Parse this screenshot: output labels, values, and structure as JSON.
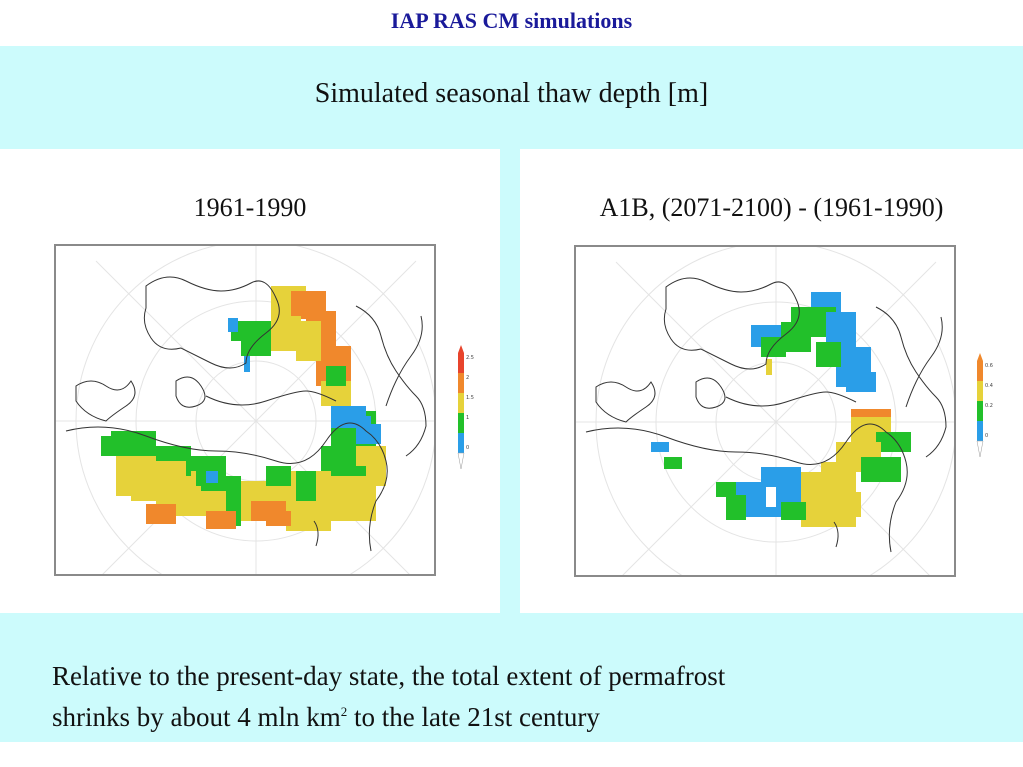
{
  "header": {
    "title": "IAP RAS CM simulations"
  },
  "panel": {
    "subtitle": "Simulated seasonal thaw depth [m]",
    "maps": [
      {
        "label": "1961-1990",
        "colorbar": {
          "ticks": [
            "2.5",
            "2",
            "1.5",
            "1",
            "0"
          ],
          "colors": [
            "#e8442c",
            "#f0882c",
            "#e6d23a",
            "#22c02a",
            "#2a9ee8",
            "#ffffff"
          ]
        }
      },
      {
        "label": "A1B, (2071-2100) - (1961-1990)",
        "colorbar": {
          "ticks": [
            "0.6",
            "0.4",
            "0.2",
            "0"
          ],
          "colors": [
            "#f0882c",
            "#e6d23a",
            "#22c02a",
            "#2a9ee8",
            "#ffffff"
          ]
        }
      }
    ]
  },
  "caption": {
    "line1": "Relative to the present-day state, the total extent of permafrost",
    "line2_pre": "shrinks by about 4 mln km",
    "line2_sup": "2",
    "line2_post": " to the late 21st century"
  },
  "colors": {
    "title": "#1a1a9a",
    "panel_bg": "#ccfbfc",
    "green": "#22c02a",
    "yellow": "#e6d23a",
    "orange": "#f0882c",
    "blue": "#2a9ee8"
  }
}
